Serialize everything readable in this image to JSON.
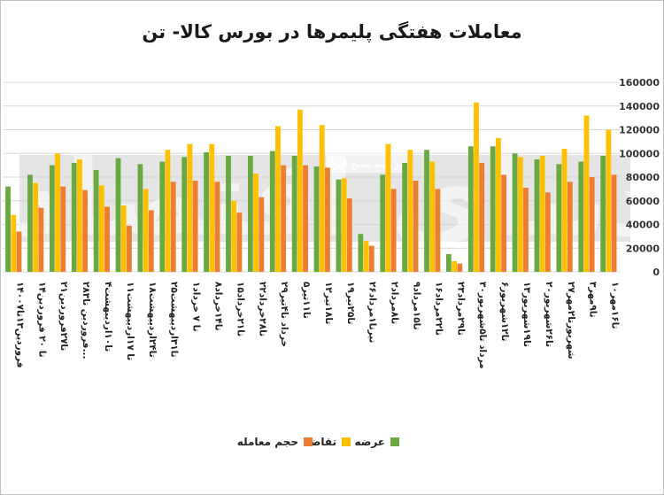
{
  "chart_data": {
    "type": "bar",
    "title": "معاملات هفتگی پلیمرها در بورس کالا- تن",
    "xlabel": "",
    "ylabel": "",
    "ylim": [
      0,
      160000
    ],
    "yticks": [
      0,
      20000,
      40000,
      60000,
      80000,
      100000,
      120000,
      140000,
      160000
    ],
    "ytick_labels": [
      "0",
      "20000",
      "40000",
      "60000",
      "80000",
      "100000",
      "120000",
      "140000",
      "160000"
    ],
    "grid": true,
    "legend_position": "bottom",
    "categories": [
      "۱۴۰۰فروردین۱۳تا۷",
      "۱۴تا ۲۰ فروردین",
      "۲۱تا۲۷فروردین",
      "۲۸فروردین تا۳...",
      "۴تا۱۰اردیبهشت",
      "۱۱تا ۱۷اردیبهشت",
      "۱۸تا۲۴اردیبهشت",
      "۲۵تا۳۱اردیبهشت",
      "۱تا ۷ خرداد",
      "۸تا۱۴خرداد",
      "۱۵تا۲۱خرداد",
      "۲۲تا۲۸خرداد",
      "۲۹خرداد تا۴تیر",
      "۵تا۱۱تیر",
      "۱۲تا۱۸تیر",
      "۱۹تا۲۵تیر",
      "۲۶تیرتا۱مرداد",
      "۲تا۸مرداد",
      "۹تا۱۵مرداد",
      "۱۶تا۲۲مرداد",
      "۲۳تا۲۹مرداد",
      "۳۰مرداد تا۵شهریور",
      "۶تا۱۲شهریور",
      "۱۳تا۱۹شهریور",
      "۲۰تا۲۶شهریور",
      "۲۷شهریورتا۲مهر",
      "۳تا۹مهر",
      "۱۰تا۱۶مهر"
    ],
    "series": [
      {
        "name": "عرضه",
        "color": "#6aa842",
        "values": [
          72000,
          82000,
          90000,
          92000,
          86000,
          96000,
          91000,
          93000,
          97000,
          101000,
          98000,
          98000,
          102000,
          98000,
          89000,
          78000,
          32000,
          82000,
          92000,
          103000,
          15000,
          106000,
          106000,
          100000,
          95000,
          91000,
          93000,
          98000
        ]
      },
      {
        "name": "تقاضا",
        "color": "#ffc000",
        "values": [
          48000,
          75000,
          100000,
          95000,
          73000,
          56000,
          70000,
          103000,
          108000,
          108000,
          60000,
          83000,
          123000,
          137000,
          124000,
          79000,
          26000,
          108000,
          103000,
          93000,
          9000,
          143000,
          113000,
          97000,
          98000,
          104000,
          132000,
          120000
        ]
      },
      {
        "name": "حجم معامله",
        "color": "#ed7d31",
        "values": [
          34000,
          54000,
          72000,
          69000,
          55000,
          39000,
          52000,
          76000,
          77000,
          76000,
          50000,
          63000,
          90000,
          90000,
          88000,
          62000,
          22000,
          70000,
          77000,
          70000,
          7000,
          92000,
          82000,
          71000,
          67000,
          76000,
          80000,
          82000
        ]
      }
    ]
  },
  "watermark": {
    "text": "روزنامه صبح ایران",
    "logo_text": "دنیای اقتصاد"
  }
}
